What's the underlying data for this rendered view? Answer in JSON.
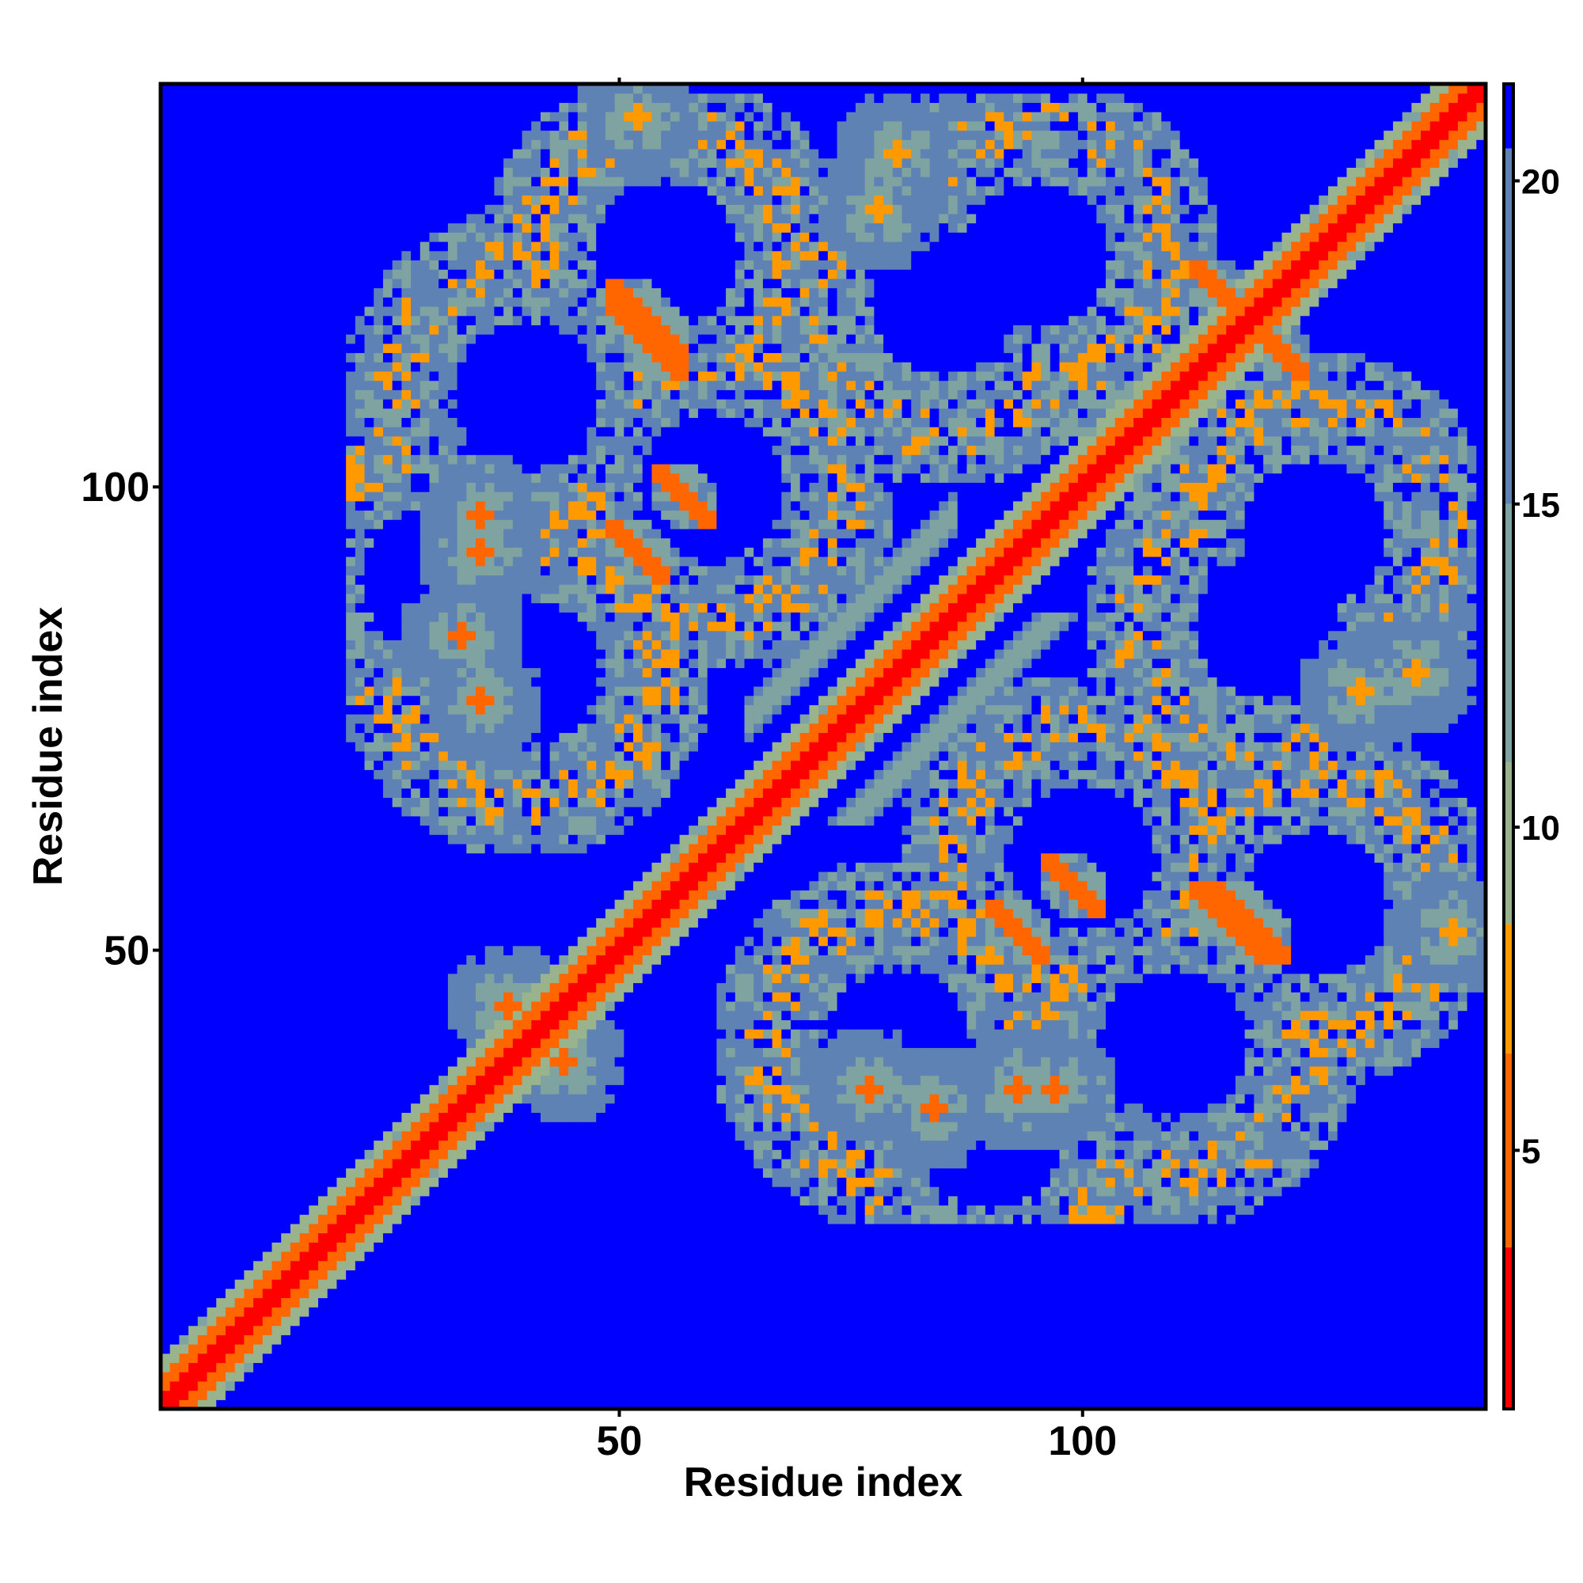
{
  "chart_data": {
    "type": "heatmap",
    "title": "",
    "xlabel": "Residue index",
    "ylabel": "Residue index",
    "n_residues": 143,
    "xlim": [
      1,
      143
    ],
    "ylim": [
      1,
      143
    ],
    "x_ticks": [
      50,
      100
    ],
    "x_tick_labels": [
      "50",
      "100"
    ],
    "y_ticks": [
      50,
      100
    ],
    "y_tick_labels": [
      "50",
      "100"
    ],
    "colorbar": {
      "range": [
        1,
        21.5
      ],
      "ticks": [
        5,
        10,
        15,
        20
      ],
      "tick_labels": [
        "5",
        "10",
        "15",
        "20"
      ],
      "bins": [
        {
          "from": 1,
          "to": 3.5,
          "color": "#ff0000"
        },
        {
          "from": 3.5,
          "to": 6.5,
          "color": "#ff6600"
        },
        {
          "from": 6.5,
          "to": 8.5,
          "color": "#ff9900"
        },
        {
          "from": 8.5,
          "to": 11,
          "color": "#99b38c"
        },
        {
          "from": 11,
          "to": 15,
          "color": "#7fa3a0"
        },
        {
          "from": 15,
          "to": 20.5,
          "color": "#5f82b5"
        },
        {
          "from": 20.5,
          "to": 21.5,
          "color": "#0000ff"
        }
      ]
    },
    "value_description_unit": "",
    "contact_features": [
      {
        "type": "diagonal",
        "from": 1,
        "to": 143
      },
      {
        "type": "parallel_band",
        "i": [
          64,
          86
        ],
        "j": [
          75,
          97
        ],
        "value": 11
      },
      {
        "type": "antiparallel",
        "i": [
          49,
          57
        ],
        "j": [
          114,
          122
        ],
        "value": 6
      },
      {
        "type": "antiparallel",
        "i": [
          54,
          60
        ],
        "j": [
          96,
          102
        ],
        "value": 6
      },
      {
        "type": "antiparallel",
        "i": [
          112,
          120
        ],
        "j": [
          49,
          57
        ],
        "value": 6
      },
      {
        "type": "antiparallel",
        "i": [
          90,
          96
        ],
        "j": [
          49,
          55
        ],
        "value": 6
      },
      {
        "type": "antiparallel",
        "i": [
          112,
          118
        ],
        "j": [
          112,
          124
        ],
        "value": 6
      },
      {
        "type": "spot",
        "i": 35,
        "j": 97,
        "value": 6
      },
      {
        "type": "spot",
        "i": 33,
        "j": 84,
        "value": 6
      },
      {
        "type": "spot",
        "i": 38,
        "j": 44,
        "value": 6
      },
      {
        "type": "spot",
        "i": 77,
        "j": 35,
        "value": 6
      },
      {
        "type": "spot",
        "i": 93,
        "j": 35,
        "value": 6
      },
      {
        "type": "spot",
        "i": 80,
        "j": 136,
        "value": 7
      },
      {
        "type": "spot",
        "i": 130,
        "j": 78,
        "value": 7
      },
      {
        "type": "spot",
        "i": 140,
        "j": 52,
        "value": 7
      }
    ]
  }
}
